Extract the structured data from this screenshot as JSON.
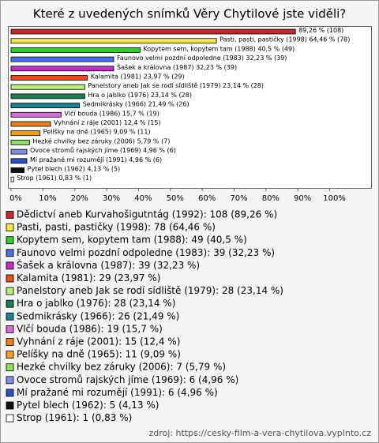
{
  "chart_data": {
    "type": "bar",
    "orientation": "horizontal",
    "title": "Které z uvedených snímků Věry Chytilové jste viděli?",
    "categories": [
      null,
      "Pasti, pasti, pastičky (1998)",
      "Kopytem sem, kopytem tam (1988)",
      "Faunovo velmi pozdní odpoledne (1983)",
      "Šašek a královna (1987)",
      "Kalamita (1981)",
      "Panelstory aneb Jak se rodí sídliště (1979)",
      "Hra o jablko (1976)",
      "Sedmikrásky (1966)",
      "Vlčí bouda (1986)",
      "Vyhnání z ráje (2001)",
      "Pelíšky na dně (1965)",
      "Hezké chvilky bez záruky (2006)",
      "Ovoce stromů rajských jíme (1969)",
      "Mí pražané mi rozumějí (1991)",
      "Pytel blech (1962)",
      "Strop (1961)"
    ],
    "values": [
      89.26,
      64.46,
      40.5,
      32.23,
      32.23,
      23.97,
      23.14,
      23.14,
      21.49,
      15.7,
      12.4,
      9.09,
      5.79,
      4.96,
      4.96,
      4.13,
      0.83
    ],
    "value_labels": [
      "89,26 % (108)",
      "64,46 % (78)",
      "40,5 % (49)",
      "32,23 % (39)",
      "32,23 % (39)",
      "23,97 % (29)",
      "23,14 % (28)",
      "23,14 % (28)",
      "21,49 % (26)",
      "15,7 % (19)",
      "12,4 % (15)",
      "9,09 % (11)",
      "5,79 % (7)",
      "4,96 % (6)",
      "4,96 % (6)",
      "4,13 % (5)",
      "0,83 % (1)"
    ],
    "colors": [
      "#c0282a",
      "#f5e64a",
      "#33cc33",
      "#4a6fe0",
      "#c030c0",
      "#e05020",
      "#b8f080",
      "#207a50",
      "#208090",
      "#d070d0",
      "#e88020",
      "#f0a020",
      "#90e060",
      "#8090e0",
      "#3050c0",
      "#101010",
      "#ffffff"
    ],
    "legend": [
      "Dědictví aneb Kurvahošigutntág (1992): 108 (89,26 %)",
      "Pasti, pasti, pastičky (1998): 78 (64,46 %)",
      "Kopytem sem, kopytem tam (1988): 49 (40,5 %)",
      "Faunovo velmi pozdní odpoledne (1983): 39 (32,23 %)",
      "Šašek a královna (1987): 39 (32,23 %)",
      "Kalamita (1981): 29 (23,97 %)",
      "Panelstory aneb Jak se rodí sídliště (1979): 28 (23,14 %)",
      "Hra o jablko (1976): 28 (23,14 %)",
      "Sedmikrásky (1966): 26 (21,49 %)",
      "Vlčí bouda (1986): 19 (15,7 %)",
      "Vyhnání z ráje (2001): 15 (12,4 %)",
      "Pelíšky na dně (1965): 11 (9,09 %)",
      "Hezké chvilky bez záruky (2006): 7 (5,79 %)",
      "Ovoce stromů rajských jíme (1969): 6 (4,96 %)",
      "Mí pražané mi rozumějí (1991): 6 (4,96 %)",
      "Pytel blech (1962): 5 (4,13 %)",
      "Strop (1961): 1 (0,83 %)"
    ],
    "xlim": [
      0,
      113
    ],
    "xticks": [
      {
        "value": 0,
        "label": "0%"
      },
      {
        "value": 10,
        "label": "10%"
      },
      {
        "value": 20,
        "label": "20%"
      },
      {
        "value": 30,
        "label": "30%"
      },
      {
        "value": 40,
        "label": "40%"
      },
      {
        "value": 50,
        "label": "50%"
      },
      {
        "value": 60,
        "label": "60%"
      },
      {
        "value": 70,
        "label": "70%"
      },
      {
        "value": 80,
        "label": "80%"
      },
      {
        "value": 90,
        "label": "90%"
      },
      {
        "value": 100,
        "label": "100%"
      }
    ],
    "source": "zdroj: https://cesky-film-a-vera-chytilova.vyplnto.cz"
  }
}
